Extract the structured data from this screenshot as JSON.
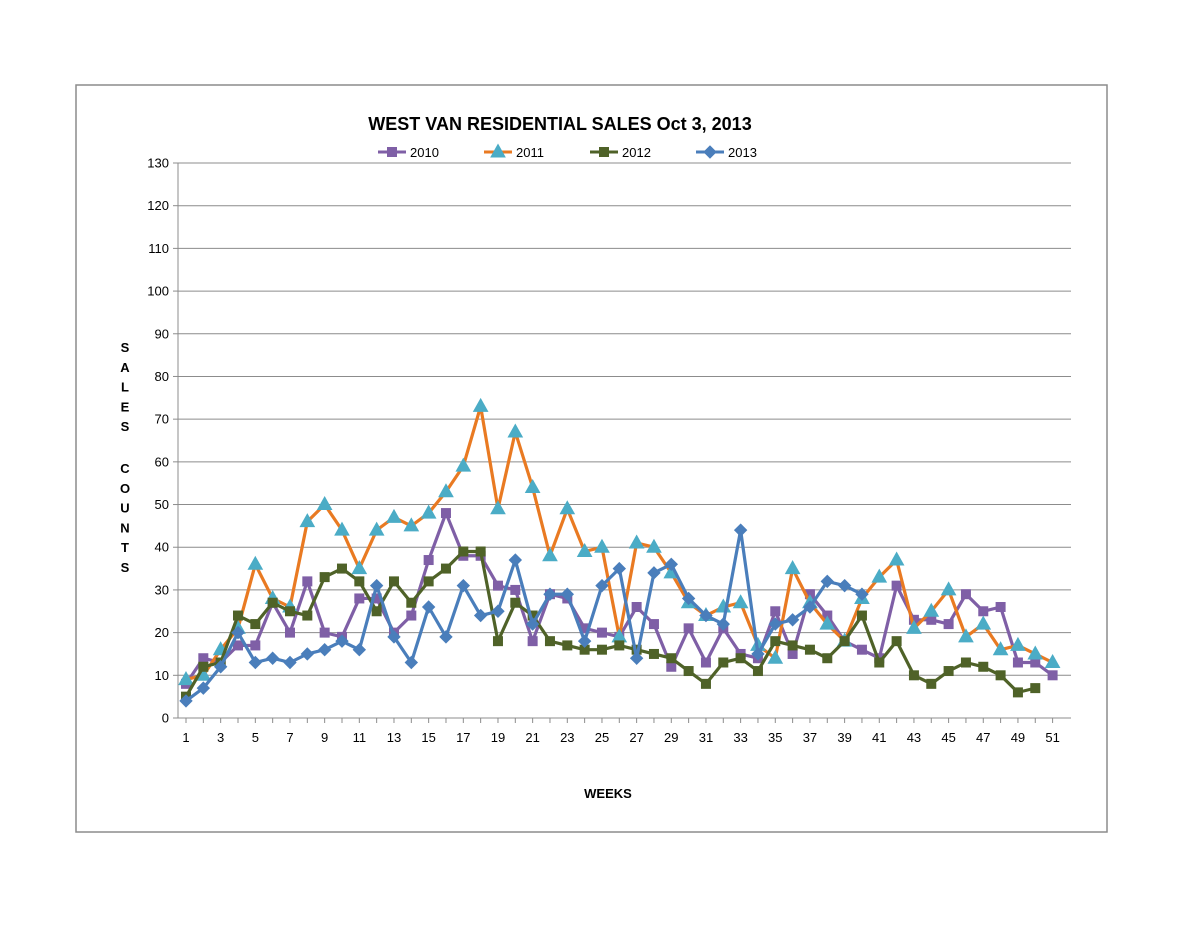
{
  "chart_data": {
    "type": "line",
    "title": "WEST VAN RESIDENTIAL SALES  Oct 3, 2013",
    "xlabel": "WEEKS",
    "ylabel": "SALES COUNTS",
    "ylim": [
      0,
      130
    ],
    "y_ticks": [
      "0",
      "10",
      "20",
      "30",
      "40",
      "50",
      "60",
      "70",
      "80",
      "90",
      "100",
      "110",
      "120",
      "130"
    ],
    "x_ticks": [
      "1",
      "3",
      "5",
      "7",
      "9",
      "11",
      "13",
      "15",
      "17",
      "19",
      "21",
      "23",
      "25",
      "27",
      "29",
      "31",
      "33",
      "35",
      "37",
      "39",
      "41",
      "43",
      "45",
      "47",
      "49",
      "51"
    ],
    "x": [
      1,
      2,
      3,
      4,
      5,
      6,
      7,
      8,
      9,
      10,
      11,
      12,
      13,
      14,
      15,
      16,
      17,
      18,
      19,
      20,
      21,
      22,
      23,
      24,
      25,
      26,
      27,
      28,
      29,
      30,
      31,
      32,
      33,
      34,
      35,
      36,
      37,
      38,
      39,
      40,
      41,
      42,
      43,
      44,
      45,
      46,
      47,
      48,
      49,
      50,
      51
    ],
    "grid": true,
    "legend_position": "top",
    "series": [
      {
        "name": "2010",
        "color": "#7f5fa6",
        "marker": "square",
        "values": [
          8,
          14,
          13,
          17,
          17,
          27,
          20,
          32,
          20,
          19,
          28,
          28,
          20,
          24,
          37,
          48,
          38,
          38,
          31,
          30,
          18,
          29,
          28,
          21,
          20,
          19,
          26,
          22,
          12,
          21,
          13,
          21,
          15,
          14,
          25,
          15,
          29,
          24,
          18,
          16,
          14,
          31,
          23,
          23,
          22,
          29,
          25,
          26,
          13,
          13,
          10
        ]
      },
      {
        "name": "2011",
        "color": "#e97a22",
        "marker": "triangle",
        "values": [
          9,
          10,
          16,
          21,
          36,
          28,
          26,
          46,
          50,
          44,
          35,
          44,
          47,
          45,
          48,
          53,
          59,
          73,
          49,
          67,
          54,
          38,
          49,
          39,
          40,
          19,
          41,
          40,
          34,
          27,
          24,
          26,
          27,
          17,
          14,
          35,
          27,
          22,
          18,
          28,
          33,
          37,
          21,
          25,
          30,
          19,
          22,
          16,
          17,
          15,
          13
        ]
      },
      {
        "name": "2012",
        "color": "#4f6228",
        "marker": "square",
        "values": [
          5,
          12,
          13,
          24,
          22,
          27,
          25,
          24,
          33,
          35,
          32,
          25,
          32,
          27,
          32,
          35,
          39,
          39,
          18,
          27,
          24,
          18,
          17,
          16,
          16,
          17,
          16,
          15,
          14,
          11,
          8,
          13,
          14,
          11,
          18,
          17,
          16,
          14,
          18,
          24,
          13,
          18,
          10,
          8,
          11,
          13,
          12,
          10,
          6,
          7,
          null
        ]
      },
      {
        "name": "2013",
        "color": "#4a7ebb",
        "marker": "diamond",
        "values": [
          4,
          7,
          12,
          20,
          13,
          14,
          13,
          15,
          16,
          18,
          16,
          31,
          19,
          13,
          26,
          19,
          31,
          24,
          25,
          37,
          22,
          29,
          29,
          18,
          31,
          35,
          14,
          34,
          36,
          28,
          24,
          22,
          44,
          15,
          22,
          23,
          26,
          32,
          31,
          29,
          null,
          null,
          null,
          null,
          null,
          null,
          null,
          null,
          null,
          null,
          null
        ]
      }
    ]
  }
}
